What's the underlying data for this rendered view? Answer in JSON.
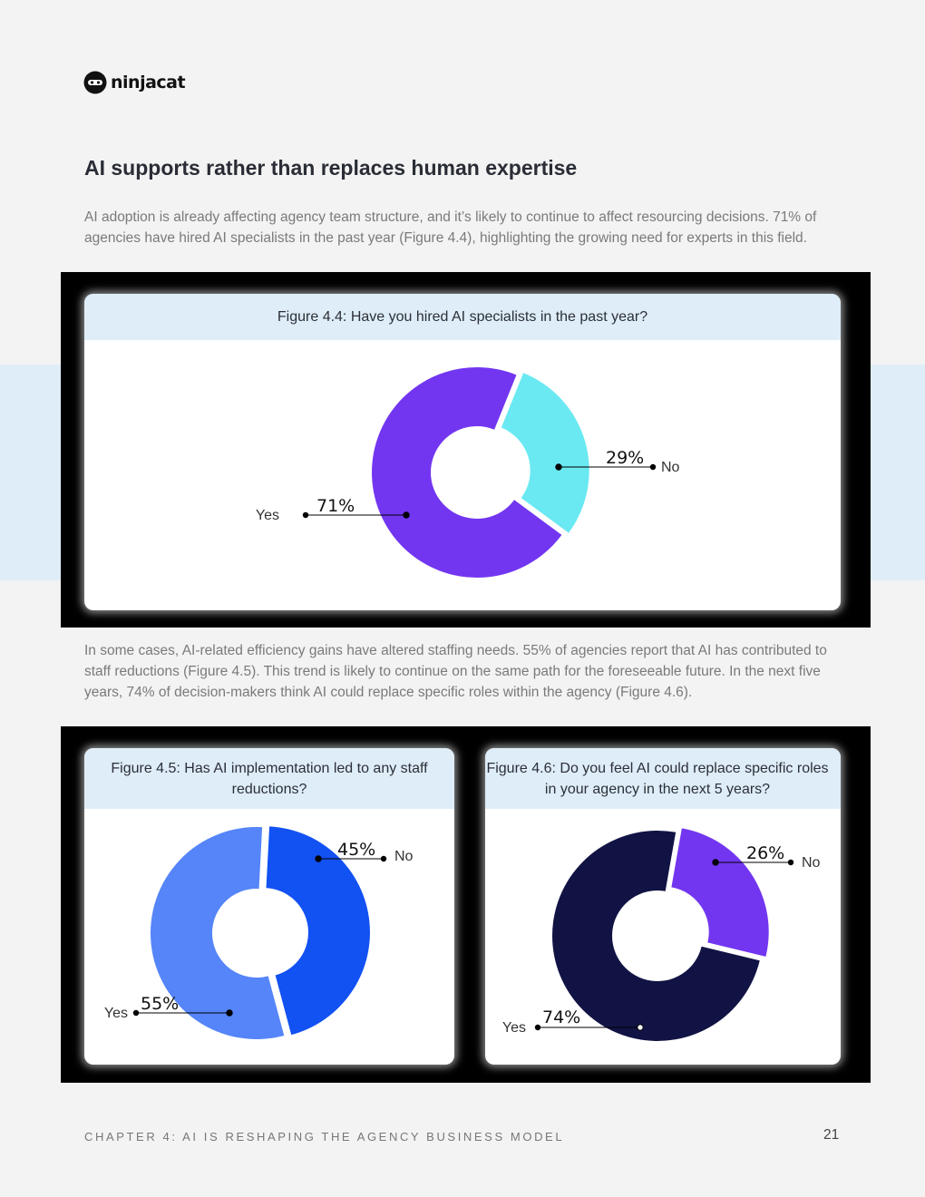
{
  "brand": {
    "name": "ninjacat"
  },
  "page_title": "AI supports rather than replaces human expertise",
  "paragraphs": [
    "AI adoption is already affecting agency team structure, and it’s likely to continue to affect resourcing decisions. 71% of agencies have hired AI specialists in the past year (Figure 4.4), highlighting the growing need for experts in this field.",
    "In some cases, AI-related efficiency gains have altered staffing needs. 55% of agencies report that AI has contributed to staff reductions (Figure 4.5). This trend is likely to continue on the same path for the foreseeable future. In the next five years, 74% of decision-makers think AI could replace specific roles within the agency (Figure 4.6)."
  ],
  "chart_data": [
    {
      "id": "fig44",
      "type": "pie",
      "title": "Figure 4.4: Have you hired AI specialists in the past year?",
      "categories": [
        "Yes",
        "No"
      ],
      "values": [
        71,
        29
      ],
      "labels": [
        "71%",
        "29%"
      ],
      "colors": [
        "#7236f0",
        "#6ae9f2"
      ],
      "donut": true,
      "exploded": "No"
    },
    {
      "id": "fig45",
      "type": "pie",
      "title": "Figure 4.5: Has AI implementation led to any staff reductions?",
      "categories": [
        "Yes",
        "No"
      ],
      "values": [
        55,
        45
      ],
      "labels": [
        "55%",
        "45%"
      ],
      "colors": [
        "#5585f8",
        "#1251f2"
      ],
      "donut": true,
      "exploded": "No"
    },
    {
      "id": "fig46",
      "type": "pie",
      "title": "Figure 4.6: Do you feel AI could replace specific roles in your agency in the next 5 years?",
      "categories": [
        "Yes",
        "No"
      ],
      "values": [
        74,
        26
      ],
      "labels": [
        "74%",
        "26%"
      ],
      "colors": [
        "#111344",
        "#7236f0"
      ],
      "donut": true,
      "exploded": "No"
    }
  ],
  "footer": {
    "chapter": "CHAPTER 4: AI IS RESHAPING THE AGENCY BUSINESS MODEL",
    "page_number": "21"
  }
}
